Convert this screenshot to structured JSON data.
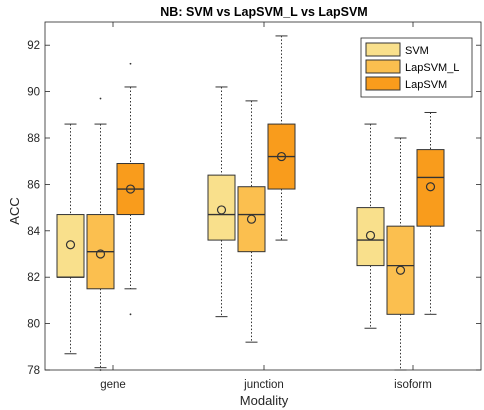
{
  "chart_data": {
    "type": "box",
    "title": "NB: SVM vs LapSVM_L vs LapSVM",
    "xlabel": "Modality",
    "ylabel": "ACC",
    "ylim": [
      78,
      93
    ],
    "yticks": [
      78,
      80,
      82,
      84,
      86,
      88,
      90,
      92
    ],
    "categories": [
      "gene",
      "junction",
      "isoform"
    ],
    "legend_position": "top-right",
    "grid": false,
    "series": [
      {
        "name": "SVM",
        "color": "#f9e08c",
        "boxes": [
          {
            "whisker_low": 78.7,
            "q1": 82.0,
            "median": 82.0,
            "q3": 84.7,
            "whisker_high": 88.6,
            "mean": 83.4,
            "outliers": []
          },
          {
            "whisker_low": 80.3,
            "q1": 83.6,
            "median": 84.7,
            "q3": 86.4,
            "whisker_high": 90.2,
            "mean": 84.9,
            "outliers": []
          },
          {
            "whisker_low": 79.8,
            "q1": 82.5,
            "median": 83.6,
            "q3": 85.0,
            "whisker_high": 88.6,
            "mean": 83.8,
            "outliers": []
          }
        ]
      },
      {
        "name": "LapSVM_L",
        "color": "#fbbf4f",
        "boxes": [
          {
            "whisker_low": 78.1,
            "q1": 81.5,
            "median": 83.1,
            "q3": 84.7,
            "whisker_high": 88.6,
            "mean": 83.0,
            "outliers": [
              89.7,
              78.0
            ]
          },
          {
            "whisker_low": 79.2,
            "q1": 83.1,
            "median": 84.7,
            "q3": 85.9,
            "whisker_high": 89.6,
            "mean": 84.5,
            "outliers": []
          },
          {
            "whisker_low": 78.0,
            "q1": 80.4,
            "median": 82.5,
            "q3": 84.2,
            "whisker_high": 88.0,
            "mean": 82.3,
            "outliers": []
          }
        ]
      },
      {
        "name": "LapSVM",
        "color": "#f99c1c",
        "boxes": [
          {
            "whisker_low": 81.5,
            "q1": 84.7,
            "median": 85.8,
            "q3": 86.9,
            "whisker_high": 90.2,
            "mean": 85.8,
            "outliers": [
              91.2,
              80.4
            ]
          },
          {
            "whisker_low": 83.6,
            "q1": 85.8,
            "median": 87.2,
            "q3": 88.6,
            "whisker_high": 92.4,
            "mean": 87.2,
            "outliers": []
          },
          {
            "whisker_low": 80.4,
            "q1": 84.2,
            "median": 86.3,
            "q3": 87.5,
            "whisker_high": 89.1,
            "mean": 85.9,
            "outliers": []
          }
        ]
      }
    ]
  }
}
